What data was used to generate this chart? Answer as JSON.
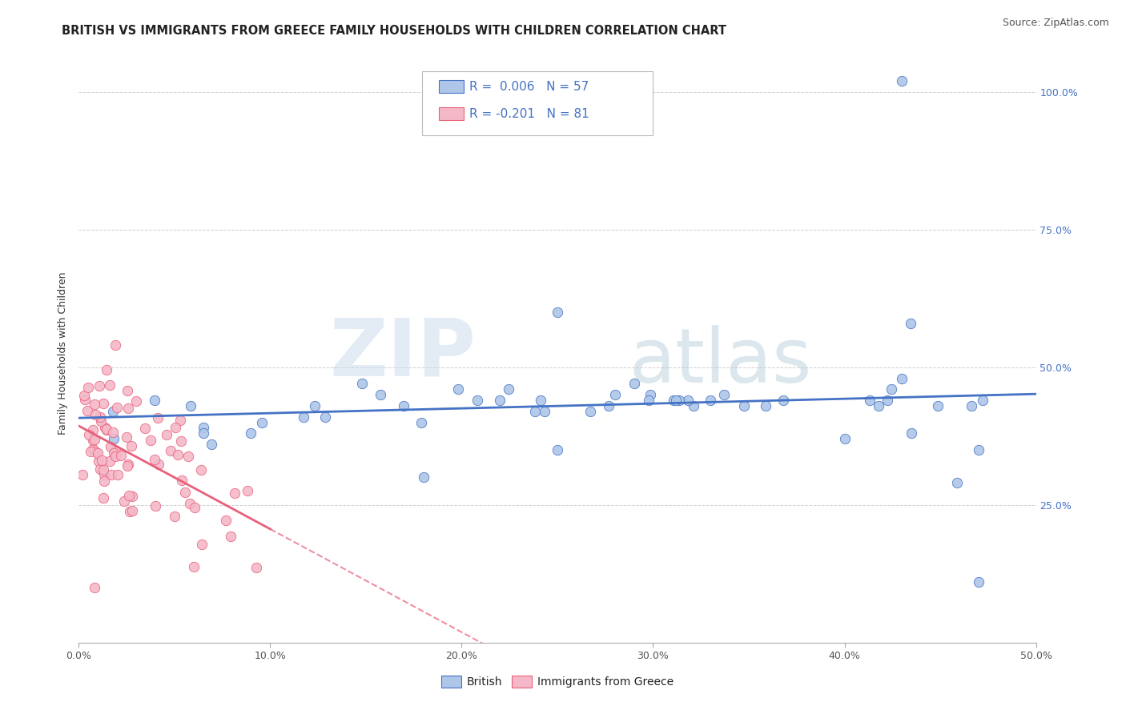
{
  "title": "BRITISH VS IMMIGRANTS FROM GREECE FAMILY HOUSEHOLDS WITH CHILDREN CORRELATION CHART",
  "source": "Source: ZipAtlas.com",
  "ylabel": "Family Households with Children",
  "xlim": [
    0.0,
    0.5
  ],
  "ylim": [
    0.0,
    1.05
  ],
  "xtick_labels": [
    "0.0%",
    "10.0%",
    "20.0%",
    "30.0%",
    "40.0%",
    "50.0%"
  ],
  "xtick_vals": [
    0.0,
    0.1,
    0.2,
    0.3,
    0.4,
    0.5
  ],
  "ytick_labels": [
    "25.0%",
    "50.0%",
    "75.0%",
    "100.0%"
  ],
  "ytick_vals": [
    0.25,
    0.5,
    0.75,
    1.0
  ],
  "british_R": "0.006",
  "british_N": "57",
  "greece_R": "-0.201",
  "greece_N": "81",
  "british_color": "#aec6e8",
  "greece_color": "#f4b8c8",
  "trendline_british_color": "#4472c4",
  "trendline_greece_color": "#e8607a",
  "watermark_zip": "ZIP",
  "watermark_atlas": "atlas",
  "background_color": "#ffffff",
  "grid_color": "#d0d0d0",
  "title_fontsize": 10.5,
  "axis_label_fontsize": 9,
  "tick_fontsize": 9,
  "legend_fontsize": 11,
  "source_fontsize": 9
}
